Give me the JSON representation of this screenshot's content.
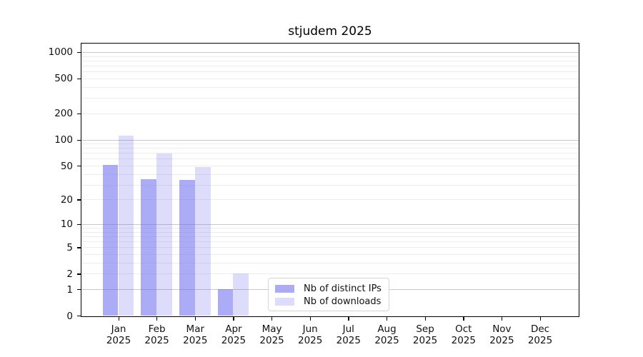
{
  "chart_data": {
    "type": "bar",
    "title": "stjudem 2025",
    "categories": [
      "Jan",
      "Feb",
      "Mar",
      "Apr",
      "May",
      "Jun",
      "Jul",
      "Aug",
      "Sep",
      "Oct",
      "Nov",
      "Dec"
    ],
    "year": "2025",
    "series": [
      {
        "name": "Nb of distinct IPs",
        "color": "rgba(102,102,238,0.55)",
        "values": [
          51,
          35,
          34,
          1,
          0,
          0,
          0,
          0,
          0,
          0,
          0,
          0
        ]
      },
      {
        "name": "Nb of downloads",
        "color": "rgba(102,102,238,0.22)",
        "values": [
          110,
          69,
          48,
          2,
          0,
          0,
          0,
          0,
          0,
          0,
          0,
          0
        ]
      }
    ],
    "xlabel": "",
    "ylabel": "",
    "y_ticks": [
      0,
      1,
      2,
      5,
      10,
      20,
      50,
      100,
      200,
      500,
      1000
    ],
    "y_major_gridlines": [
      1,
      10,
      100,
      1000
    ],
    "y_minor_gridlines": [
      2,
      3,
      4,
      5,
      6,
      7,
      8,
      9,
      20,
      30,
      40,
      50,
      60,
      70,
      80,
      90,
      200,
      300,
      400,
      500,
      600,
      700,
      800,
      900
    ],
    "scale": "log10(1+v)",
    "ylim": [
      0,
      1270
    ],
    "grid": true,
    "legend_position": "lower center"
  },
  "colors": {
    "major_grid": "#c8c8c8",
    "minor_grid": "#ededed",
    "axis": "#000000",
    "text": "#111111",
    "legend_border": "#d5d5d5"
  }
}
